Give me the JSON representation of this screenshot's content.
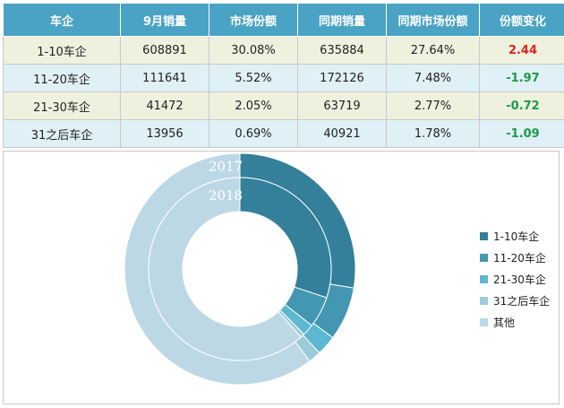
{
  "table": {
    "headers": [
      "车企",
      "9月销量",
      "市场份额",
      "同期销量",
      "同期市场份额",
      "份额变化"
    ],
    "rows": [
      [
        "1-10车企",
        "608891",
        "30.08%",
        "635884",
        "27.64%",
        "2.44"
      ],
      [
        "11-20车企",
        "111641",
        "5.52%",
        "172126",
        "7.48%",
        "-1.97"
      ],
      [
        "21-30车企",
        "41472",
        "2.05%",
        "63719",
        "2.77%",
        "-0.72"
      ],
      [
        "31之后车企",
        "13956",
        "0.69%",
        "40921",
        "1.78%",
        "-1.09"
      ]
    ]
  },
  "chart_data": {
    "type": "pie",
    "variant": "nested-donut",
    "rings": [
      {
        "name": "2017",
        "values": [
          27.64,
          7.48,
          2.77,
          1.78,
          60.33
        ]
      },
      {
        "name": "2018",
        "values": [
          30.08,
          5.52,
          2.05,
          0.69,
          61.66
        ]
      }
    ],
    "categories": [
      "1-10车企",
      "11-20车企",
      "21-30车企",
      "31之后车企",
      "其他"
    ],
    "colors": [
      "#347f99",
      "#4397b3",
      "#5cb7d0",
      "#9ccadb",
      "#bcd8e4"
    ],
    "legend_position": "right"
  }
}
